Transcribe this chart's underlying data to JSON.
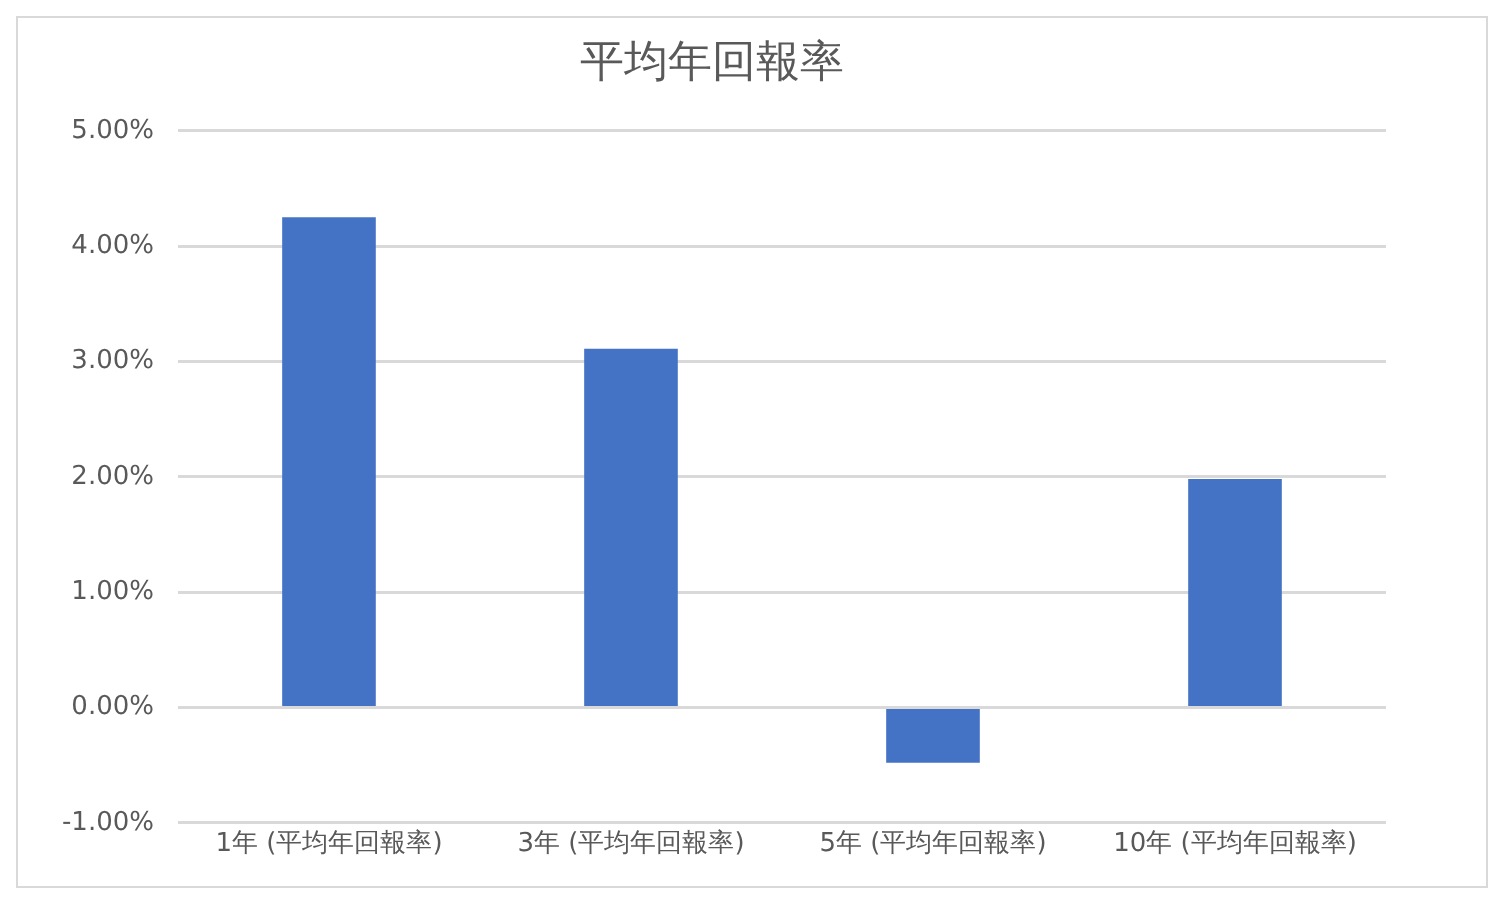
{
  "chart_data": {
    "type": "bar",
    "title": "平均年回報率",
    "categories": [
      "1年 (平均年回報率)",
      "3年 (平均年回報率)",
      "5年 (平均年回報率)",
      "10年 (平均年回報率)"
    ],
    "values": [
      4.25,
      3.11,
      -0.48,
      1.98
    ],
    "color": "#4472c4",
    "ylim": [
      -1,
      5
    ],
    "yticks": [
      {
        "value": -1,
        "label": "-1.00%"
      },
      {
        "value": 0,
        "label": "0.00%"
      },
      {
        "value": 1,
        "label": "1.00%"
      },
      {
        "value": 2,
        "label": "2.00%"
      },
      {
        "value": 3,
        "label": "3.00%"
      },
      {
        "value": 4,
        "label": "4.00%"
      },
      {
        "value": 5,
        "label": "5.00%"
      }
    ],
    "grid": "y"
  }
}
